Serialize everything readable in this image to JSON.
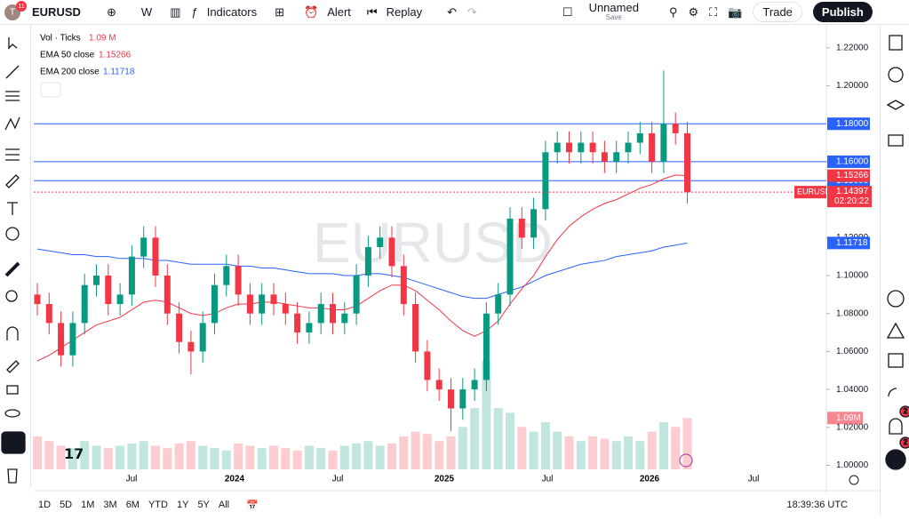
{
  "toolbar": {
    "avatar_badge": "11",
    "symbol": "EURUSD",
    "interval": "W",
    "indicators": "Indicators",
    "alert": "Alert",
    "replay": "Replay",
    "layout_name": "Unnamed",
    "save": "Save",
    "trade": "Trade",
    "publish": "Publish"
  },
  "legend": {
    "vol": "Vol · Ticks",
    "vol_value": "1.09 M",
    "ema50": "EMA 50 close",
    "ema50_value": "1.15266",
    "ema200": "EMA 200 close",
    "ema200_value": "1.11718"
  },
  "watermark": "EURUSD",
  "sidebar_badges": [
    "2",
    "2"
  ],
  "bottom_bar": {
    "timeframes": [
      "1D",
      "5D",
      "1M",
      "3M",
      "6M",
      "YTD",
      "1Y",
      "5Y",
      "All"
    ],
    "clock": "18:39:36 UTC"
  },
  "chart_data": {
    "type": "candlestick",
    "open": [
      1.09,
      1.085,
      1.075,
      1.058,
      1.075,
      1.095,
      1.1,
      1.085,
      1.09,
      1.11,
      1.12,
      1.1,
      1.08,
      1.065,
      1.06,
      1.075,
      1.095,
      1.105,
      1.09,
      1.08,
      1.09,
      1.085,
      1.08,
      1.07,
      1.075,
      1.085,
      1.075,
      1.08,
      1.1,
      1.115,
      1.12,
      1.105,
      1.085,
      1.06,
      1.045,
      1.04,
      1.03,
      1.04,
      1.045,
      1.08,
      1.09,
      1.13,
      1.12,
      1.135,
      1.165,
      1.17,
      1.165,
      1.17,
      1.165,
      1.16,
      1.165,
      1.17,
      1.175,
      1.16,
      1.18,
      1.175
    ],
    "high": [
      1.096,
      1.091,
      1.081,
      1.081,
      1.101,
      1.106,
      1.106,
      1.096,
      1.116,
      1.126,
      1.126,
      1.106,
      1.086,
      1.071,
      1.081,
      1.101,
      1.111,
      1.111,
      1.096,
      1.096,
      1.096,
      1.091,
      1.086,
      1.081,
      1.091,
      1.091,
      1.086,
      1.106,
      1.121,
      1.126,
      1.126,
      1.111,
      1.091,
      1.066,
      1.051,
      1.046,
      1.046,
      1.051,
      1.086,
      1.096,
      1.136,
      1.136,
      1.141,
      1.171,
      1.176,
      1.176,
      1.176,
      1.176,
      1.171,
      1.171,
      1.176,
      1.181,
      1.181,
      1.208,
      1.186,
      1.181
    ],
    "low": [
      1.079,
      1.069,
      1.052,
      1.052,
      1.069,
      1.089,
      1.079,
      1.079,
      1.084,
      1.104,
      1.094,
      1.074,
      1.059,
      1.048,
      1.054,
      1.069,
      1.089,
      1.084,
      1.074,
      1.074,
      1.079,
      1.074,
      1.064,
      1.064,
      1.069,
      1.069,
      1.069,
      1.074,
      1.094,
      1.109,
      1.099,
      1.079,
      1.054,
      1.039,
      1.034,
      1.018,
      1.024,
      1.034,
      1.039,
      1.074,
      1.084,
      1.114,
      1.114,
      1.129,
      1.159,
      1.159,
      1.159,
      1.159,
      1.154,
      1.154,
      1.159,
      1.164,
      1.154,
      1.154,
      1.169,
      1.138
    ],
    "close": [
      1.085,
      1.075,
      1.058,
      1.075,
      1.095,
      1.1,
      1.085,
      1.09,
      1.11,
      1.12,
      1.1,
      1.08,
      1.065,
      1.06,
      1.075,
      1.095,
      1.105,
      1.09,
      1.08,
      1.09,
      1.085,
      1.08,
      1.07,
      1.075,
      1.085,
      1.075,
      1.08,
      1.1,
      1.115,
      1.12,
      1.105,
      1.085,
      1.06,
      1.045,
      1.04,
      1.03,
      1.04,
      1.045,
      1.08,
      1.09,
      1.13,
      1.12,
      1.135,
      1.165,
      1.17,
      1.165,
      1.17,
      1.165,
      1.16,
      1.165,
      1.17,
      1.175,
      1.16,
      1.18,
      1.175,
      1.14397
    ],
    "volume": [
      0.7,
      0.6,
      0.5,
      0.45,
      0.6,
      0.5,
      0.45,
      0.5,
      0.55,
      0.6,
      0.5,
      0.45,
      0.55,
      0.6,
      0.5,
      0.45,
      0.4,
      0.55,
      0.5,
      0.45,
      0.5,
      0.45,
      0.4,
      0.5,
      0.45,
      0.4,
      0.5,
      0.55,
      0.6,
      0.5,
      0.55,
      0.7,
      0.8,
      0.75,
      0.6,
      0.7,
      0.9,
      1.3,
      2.3,
      1.3,
      1.2,
      0.9,
      0.8,
      1.0,
      0.8,
      0.7,
      0.6,
      0.7,
      0.65,
      0.6,
      0.7,
      0.6,
      0.8,
      1.0,
      0.9,
      1.09
    ],
    "ema50": [
      1.055,
      1.058,
      1.062,
      1.066,
      1.07,
      1.074,
      1.076,
      1.078,
      1.082,
      1.086,
      1.087,
      1.086,
      1.083,
      1.08,
      1.079,
      1.08,
      1.083,
      1.085,
      1.085,
      1.086,
      1.086,
      1.085,
      1.084,
      1.083,
      1.083,
      1.082,
      1.082,
      1.084,
      1.088,
      1.092,
      1.095,
      1.095,
      1.092,
      1.087,
      1.082,
      1.076,
      1.071,
      1.068,
      1.071,
      1.076,
      1.085,
      1.093,
      1.1,
      1.11,
      1.119,
      1.126,
      1.131,
      1.135,
      1.138,
      1.14,
      1.143,
      1.146,
      1.148,
      1.151,
      1.153,
      1.15266
    ],
    "ema200": [
      1.114,
      1.113,
      1.112,
      1.111,
      1.111,
      1.11,
      1.11,
      1.109,
      1.109,
      1.109,
      1.108,
      1.108,
      1.107,
      1.106,
      1.106,
      1.106,
      1.106,
      1.105,
      1.105,
      1.104,
      1.104,
      1.103,
      1.102,
      1.101,
      1.101,
      1.101,
      1.1,
      1.1,
      1.101,
      1.101,
      1.1,
      1.099,
      1.097,
      1.095,
      1.093,
      1.091,
      1.089,
      1.088,
      1.088,
      1.09,
      1.092,
      1.094,
      1.097,
      1.1,
      1.102,
      1.104,
      1.106,
      1.107,
      1.108,
      1.11,
      1.111,
      1.112,
      1.113,
      1.115,
      1.116,
      1.11718
    ],
    "up_color": "#089981",
    "down_color": "#f23645",
    "ema50_color": "#f23645",
    "ema200_color": "#2962ff",
    "ylim": [
      0.9979,
      1.2321
    ],
    "yticks": [
      {
        "value": 1.22,
        "label": "1.22000"
      },
      {
        "value": 1.2,
        "label": "1.20000"
      },
      {
        "value": 1.16,
        "label": "1.16000"
      },
      {
        "value": 1.12,
        "label": "1.12000"
      },
      {
        "value": 1.1,
        "label": "1.10000"
      },
      {
        "value": 1.08,
        "label": "1.08000"
      },
      {
        "value": 1.06,
        "label": "1.06000"
      },
      {
        "value": 1.04,
        "label": "1.04000"
      },
      {
        "value": 1.02,
        "label": "1.02000"
      },
      {
        "value": 1.0,
        "label": "1.00000"
      }
    ],
    "levels": [
      {
        "value": 1.18,
        "label": "1.18000"
      },
      {
        "value": 1.16,
        "label": "1.16000"
      },
      {
        "value": 1.15,
        "label": "1.15000"
      }
    ],
    "last_price": {
      "value": 1.14397,
      "label": "1.14397",
      "symbol": "EURUSD",
      "countdown": "02:20:22"
    },
    "ema50_badge": {
      "value": 1.15266,
      "label": "1.15266"
    },
    "ema200_badge": {
      "value": 1.11718,
      "label": "1.11718"
    },
    "volume_badge": {
      "value": 1.09,
      "label": "1.09M"
    },
    "x_labels": [
      "Jul",
      "2024",
      "Jul",
      "2025",
      "Jul",
      "2026",
      "Jul"
    ]
  }
}
